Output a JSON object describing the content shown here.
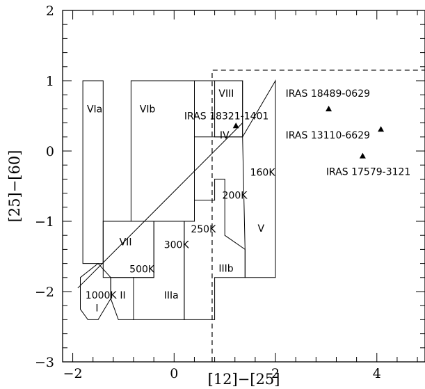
{
  "chart_data": {
    "type": "scatter",
    "xlabel": "[12]−[25]",
    "ylabel": "[25]−[60]",
    "xlim": [
      -2.2,
      4.95
    ],
    "ylim": [
      -3,
      2
    ],
    "x_ticks": [
      -2,
      0,
      2,
      4
    ],
    "y_ticks": [
      -3,
      -2,
      -1,
      0,
      1,
      2
    ],
    "grid": false,
    "regions": [
      {
        "label": "I",
        "polygon": [
          [
            -1.85,
            -1.8
          ],
          [
            -1.5,
            -1.6
          ],
          [
            -1.25,
            -1.8
          ],
          [
            -1.25,
            -2.1
          ],
          [
            -1.5,
            -2.4
          ],
          [
            -1.7,
            -2.4
          ],
          [
            -1.85,
            -2.25
          ]
        ],
        "label_pos": [
          -1.55,
          -2.28
        ]
      },
      {
        "label": "II",
        "polygon": [
          [
            -1.25,
            -1.8
          ],
          [
            -0.8,
            -1.8
          ],
          [
            -0.8,
            -2.4
          ],
          [
            -1.1,
            -2.4
          ],
          [
            -1.25,
            -2.1
          ]
        ],
        "label_pos": [
          -1.07,
          -2.1
        ]
      },
      {
        "label": "IIIa",
        "polygon": [
          [
            -0.8,
            -1.8
          ],
          [
            -0.4,
            -1.8
          ],
          [
            -0.4,
            -1.0
          ],
          [
            0.2,
            -1.0
          ],
          [
            0.2,
            -2.4
          ],
          [
            -0.8,
            -2.4
          ]
        ],
        "label_pos": [
          -0.2,
          -2.1
        ]
      },
      {
        "label": "IIIb",
        "polygon": [
          [
            0.2,
            -1.0
          ],
          [
            0.4,
            -1.0
          ],
          [
            0.4,
            -0.7
          ],
          [
            0.8,
            -0.7
          ],
          [
            0.8,
            -0.4
          ],
          [
            1.0,
            -0.4
          ],
          [
            1.0,
            -1.2
          ],
          [
            1.4,
            -1.4
          ],
          [
            1.4,
            -1.8
          ],
          [
            0.8,
            -1.8
          ],
          [
            0.8,
            -2.4
          ],
          [
            0.2,
            -2.4
          ]
        ],
        "label_pos": [
          0.88,
          -1.72
        ]
      },
      {
        "label": "IV",
        "polygon": [
          [
            0.8,
            1.0
          ],
          [
            1.35,
            1.0
          ],
          [
            1.35,
            0.2
          ],
          [
            0.8,
            0.2
          ]
        ],
        "label_pos": [
          0.9,
          0.18
        ]
      },
      {
        "label": "V",
        "polygon": [
          [
            1.35,
            0.2
          ],
          [
            2.0,
            1.0
          ],
          [
            2.0,
            -1.8
          ],
          [
            1.4,
            -1.8
          ],
          [
            1.4,
            -1.4
          ],
          [
            1.35,
            0.2
          ]
        ],
        "label_pos": [
          1.65,
          -1.15
        ]
      },
      {
        "label": "VII",
        "polygon": [
          [
            -1.4,
            -1.0
          ],
          [
            -0.4,
            -1.0
          ],
          [
            -0.4,
            -1.8
          ],
          [
            -1.4,
            -1.8
          ]
        ],
        "label_pos": [
          -1.08,
          -1.34
        ]
      },
      {
        "label": "VIII",
        "polygon": [
          [
            0.4,
            1.0
          ],
          [
            1.35,
            1.0
          ],
          [
            1.35,
            0.2
          ],
          [
            0.4,
            0.2
          ]
        ],
        "label_pos": [
          0.88,
          0.77
        ]
      },
      {
        "label": "VIa",
        "polygon": [
          [
            -1.8,
            1.0
          ],
          [
            -1.4,
            1.0
          ],
          [
            -1.4,
            -1.6
          ],
          [
            -1.8,
            -1.6
          ]
        ],
        "label_pos": [
          -1.72,
          0.55
        ]
      },
      {
        "label": "VIb",
        "polygon": [
          [
            -0.85,
            1.0
          ],
          [
            0.4,
            1.0
          ],
          [
            0.4,
            -1.0
          ],
          [
            -0.85,
            -1.0
          ]
        ],
        "label_pos": [
          -0.68,
          0.55
        ]
      }
    ],
    "blackbody_line": [
      [
        -1.9,
        -1.95
      ],
      [
        1.35,
        0.4
      ]
    ],
    "temperature_labels": [
      {
        "text": "160K",
        "x": 1.5,
        "y": -0.35
      },
      {
        "text": "200K",
        "x": 0.95,
        "y": -0.68
      },
      {
        "text": "250K",
        "x": 0.33,
        "y": -1.16
      },
      {
        "text": "300K",
        "x": -0.2,
        "y": -1.38
      },
      {
        "text": "500K",
        "x": -0.88,
        "y": -1.73
      },
      {
        "text": "1000K",
        "x": -1.75,
        "y": -2.1
      }
    ],
    "dashed_box": {
      "x_from": 0.75,
      "y_top": 1.15
    },
    "points": [
      {
        "name": "IRAS 18321-1401",
        "x": 1.22,
        "y": 0.36,
        "label": "IRAS 18321-1401",
        "label_pos": [
          0.2,
          0.45
        ]
      },
      {
        "name": "IRAS 18489-0629",
        "x": 3.05,
        "y": 0.6,
        "label": "IRAS 18489-0629",
        "label_pos": [
          2.2,
          0.77
        ]
      },
      {
        "name": "IRAS 13110-6629",
        "x": 4.08,
        "y": 0.31,
        "label": "IRAS 13110-6629",
        "label_pos": [
          2.2,
          0.18
        ]
      },
      {
        "name": "IRAS 17579-3121",
        "x": 3.72,
        "y": -0.07,
        "label": "IRAS 17579-3121",
        "label_pos": [
          3.0,
          -0.34
        ]
      }
    ]
  }
}
